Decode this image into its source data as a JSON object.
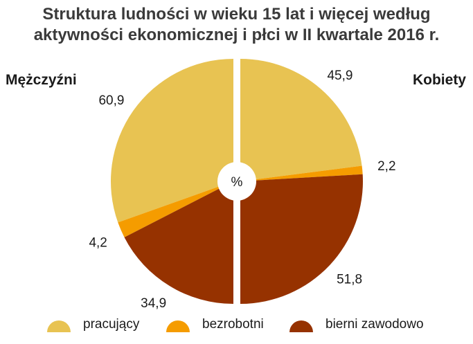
{
  "title_line1": "Struktura ludności w wieku 15 lat i więcej według",
  "title_line2": "aktywności ekonomicznej i płci w II kwartale 2016 r.",
  "left_label": "Mężczyźni",
  "right_label": "Kobiety",
  "center_label": "%",
  "colors": {
    "pracujacy": "#e8c352",
    "bezrobotni": "#f59c00",
    "bierni": "#963200"
  },
  "legend": [
    {
      "label": "pracujący",
      "color_key": "pracujacy"
    },
    {
      "label": "bezrobotni",
      "color_key": "bezrobotni"
    },
    {
      "label": "bierni zawodowo",
      "color_key": "bierni"
    }
  ],
  "chart_data": {
    "type": "pie",
    "title": "Struktura ludności w wieku 15 lat i więcej według aktywności ekonomicznej i płci w II kwartale 2016 r.",
    "unit": "%",
    "categories": [
      "pracujący",
      "bezrobotni",
      "bierni zawodowo"
    ],
    "series": [
      {
        "name": "Mężczyźni",
        "values": [
          60.9,
          4.2,
          34.9
        ],
        "value_labels": [
          "60,9",
          "4,2",
          "34,9"
        ]
      },
      {
        "name": "Kobiety",
        "values": [
          45.9,
          2.2,
          51.8
        ],
        "value_labels": [
          "45,9",
          "2,2",
          "51,8"
        ]
      }
    ],
    "layout": "two half-pies: Mężczyźni left half, Kobiety right half",
    "legend_position": "bottom"
  }
}
